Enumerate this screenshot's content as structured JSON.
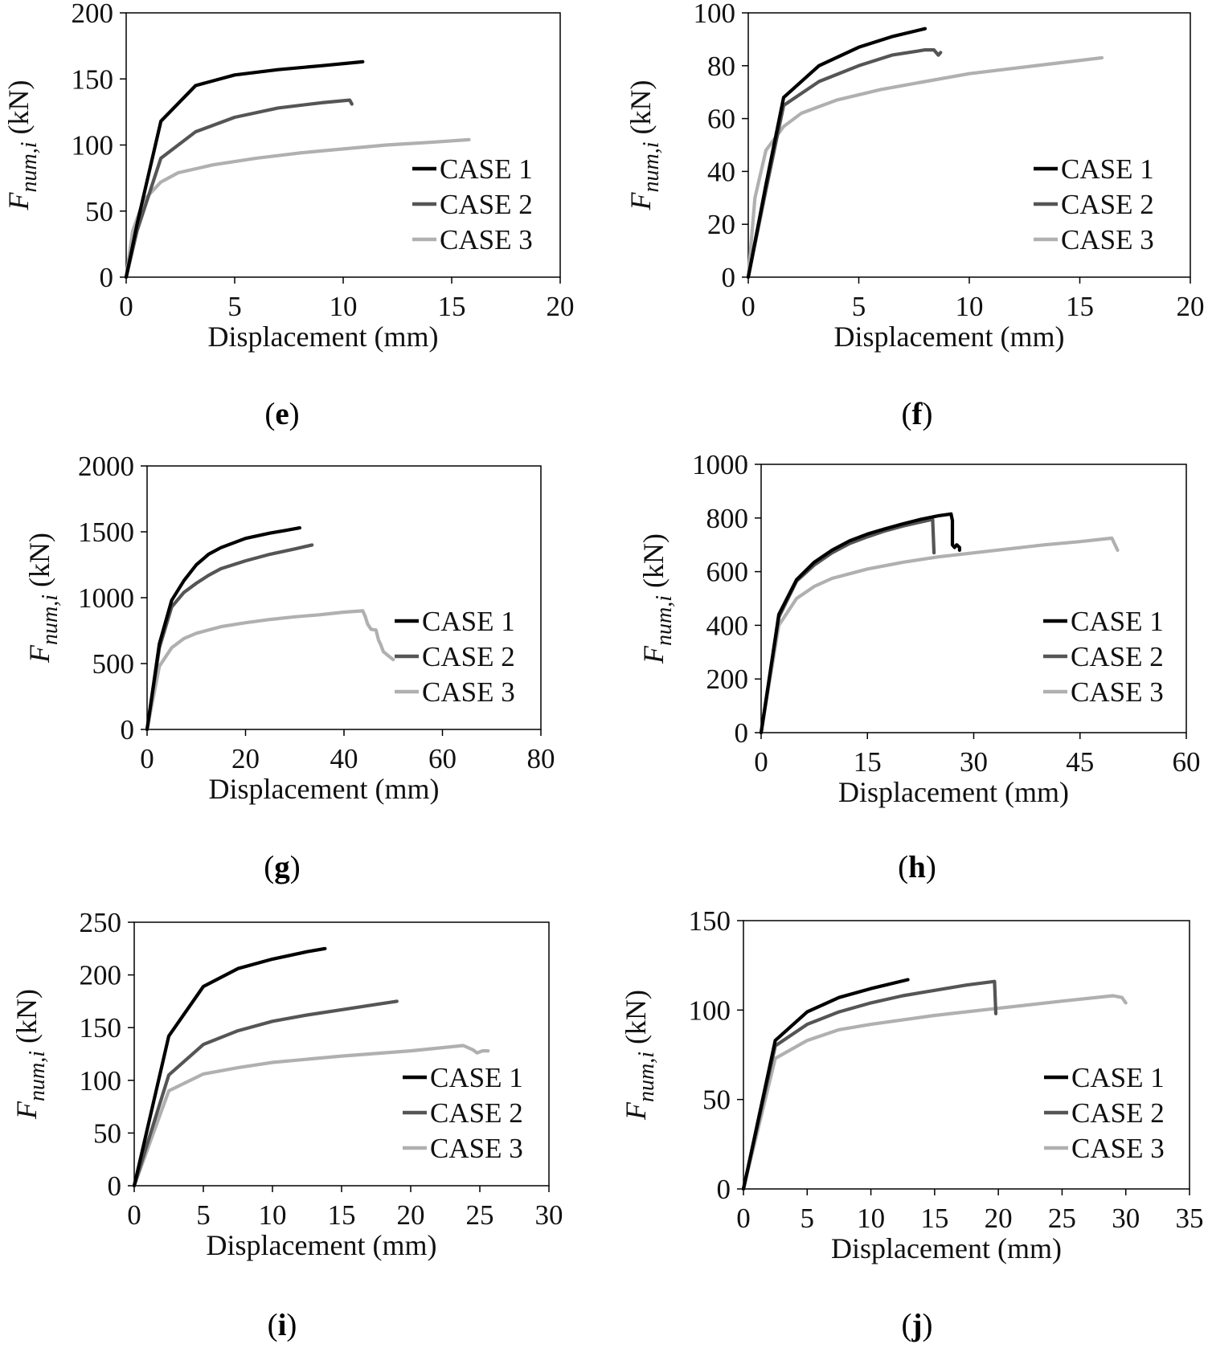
{
  "figure": {
    "colors": {
      "case1": "#000000",
      "case2": "#555555",
      "case3": "#b0b0b0",
      "frame": "#000000"
    },
    "legend_labels": [
      "CASE 1",
      "CASE 2",
      "CASE 3"
    ],
    "y_axis_label": {
      "main": "F",
      "subscript": "num,i",
      "unit": " (kN)"
    }
  },
  "chart_data": [
    {
      "id": "e",
      "panel_label": "e",
      "type": "line",
      "xlabel": "Displacement (mm)",
      "ylabel": "Fnum,i (kN)",
      "xlim": [
        0,
        20
      ],
      "ylim": [
        0,
        200
      ],
      "xticks": [
        "0",
        "5",
        "10",
        "15",
        "20"
      ],
      "yticks": [
        "0",
        "50",
        "100",
        "150",
        "200"
      ],
      "legend": [
        "CASE 1",
        "CASE 2",
        "CASE 3"
      ],
      "series": [
        {
          "name": "CASE 1",
          "x": [
            0,
            0.5,
            1.6,
            3.2,
            5,
            7,
            9,
            10.9
          ],
          "y": [
            0,
            40,
            118,
            145,
            153,
            157,
            160,
            163
          ]
        },
        {
          "name": "CASE 2",
          "x": [
            0,
            0.5,
            1.6,
            3.2,
            5,
            7,
            9,
            10.3,
            10.4
          ],
          "y": [
            0,
            35,
            90,
            110,
            121,
            128,
            132,
            134,
            131
          ]
        },
        {
          "name": "CASE 3",
          "x": [
            0,
            0.3,
            0.8,
            1.6,
            2.4,
            4,
            6,
            8,
            10,
            12,
            14,
            15.8
          ],
          "y": [
            0,
            35,
            58,
            72,
            79,
            85,
            90,
            94,
            97,
            100,
            102,
            104
          ]
        }
      ]
    },
    {
      "id": "f",
      "panel_label": "f",
      "type": "line",
      "xlabel": "Displacement (mm)",
      "ylabel": "Fnum,i (kN)",
      "xlim": [
        0,
        20
      ],
      "ylim": [
        0,
        100
      ],
      "xticks": [
        "0",
        "5",
        "10",
        "15",
        "20"
      ],
      "yticks": [
        "0",
        "20",
        "40",
        "60",
        "80",
        "100"
      ],
      "legend": [
        "CASE 1",
        "CASE 2",
        "CASE 3"
      ],
      "series": [
        {
          "name": "CASE 1",
          "x": [
            0,
            0.8,
            1.6,
            3.2,
            5,
            6.5,
            8
          ],
          "y": [
            0,
            35,
            68,
            80,
            87,
            91,
            94
          ]
        },
        {
          "name": "CASE 2",
          "x": [
            0,
            0.8,
            1.6,
            3.2,
            5,
            6.5,
            8,
            8.4,
            8.6,
            8.7
          ],
          "y": [
            0,
            33,
            65,
            74,
            80,
            84,
            86,
            86,
            84,
            85
          ]
        },
        {
          "name": "CASE 3",
          "x": [
            0,
            0.3,
            0.8,
            1.6,
            2.4,
            4,
            6,
            8,
            10,
            12,
            14,
            16
          ],
          "y": [
            0,
            30,
            48,
            57,
            62,
            67,
            71,
            74,
            77,
            79,
            81,
            83
          ]
        }
      ]
    },
    {
      "id": "g",
      "panel_label": "g",
      "type": "line",
      "xlabel": "Displacement (mm)",
      "ylabel": "Fnum,i (kN)",
      "xlim": [
        0,
        80
      ],
      "ylim": [
        0,
        2000
      ],
      "xticks": [
        "0",
        "20",
        "40",
        "60",
        "80"
      ],
      "yticks": [
        "0",
        "500",
        "1000",
        "1500",
        "2000"
      ],
      "legend": [
        "CASE 1",
        "CASE 2",
        "CASE 3"
      ],
      "series": [
        {
          "name": "CASE 1",
          "x": [
            0,
            2.5,
            5,
            7.5,
            10,
            12.5,
            15,
            20,
            25,
            28,
            31
          ],
          "y": [
            0,
            650,
            980,
            1130,
            1250,
            1330,
            1380,
            1450,
            1490,
            1510,
            1530
          ]
        },
        {
          "name": "CASE 2",
          "x": [
            0,
            2.5,
            5,
            7.5,
            10,
            12.5,
            15,
            20,
            25,
            30,
            33.5
          ],
          "y": [
            0,
            620,
            930,
            1040,
            1110,
            1170,
            1220,
            1280,
            1330,
            1370,
            1400
          ]
        },
        {
          "name": "CASE 3",
          "x": [
            0,
            2.5,
            5,
            7.5,
            10,
            15,
            20,
            25,
            30,
            35,
            40,
            43.8,
            44.3,
            44.8,
            45.5,
            46.5,
            47,
            47.5,
            48,
            49,
            50
          ],
          "y": [
            0,
            480,
            620,
            690,
            730,
            780,
            810,
            835,
            855,
            870,
            890,
            900,
            860,
            800,
            760,
            755,
            680,
            640,
            590,
            560,
            530
          ]
        }
      ]
    },
    {
      "id": "h",
      "panel_label": "h",
      "type": "line",
      "xlabel": "Displacement (mm)",
      "ylabel": "Fnum,i (kN)",
      "xlim": [
        0,
        60
      ],
      "ylim": [
        0,
        1000
      ],
      "xticks": [
        "0",
        "15",
        "30",
        "45",
        "60"
      ],
      "yticks": [
        "0",
        "200",
        "400",
        "600",
        "800",
        "1000"
      ],
      "legend": [
        "CASE 1",
        "CASE 2",
        "CASE 3"
      ],
      "series": [
        {
          "name": "CASE 1",
          "x": [
            0,
            2.5,
            5,
            7.5,
            10,
            12.5,
            15,
            17.5,
            20,
            22.5,
            25,
            26.8,
            27,
            27,
            27.3,
            27.6,
            28,
            28
          ],
          "y": [
            0,
            440,
            570,
            635,
            680,
            715,
            740,
            760,
            778,
            795,
            808,
            815,
            790,
            700,
            690,
            700,
            690,
            680
          ]
        },
        {
          "name": "CASE 2",
          "x": [
            0,
            2.5,
            5,
            7.5,
            10,
            12.5,
            15,
            17.5,
            20,
            22.5,
            24.2,
            24.4
          ],
          "y": [
            0,
            430,
            565,
            625,
            670,
            705,
            730,
            752,
            770,
            785,
            795,
            670
          ]
        },
        {
          "name": "CASE 3",
          "x": [
            0,
            2.5,
            5,
            7.5,
            10,
            15,
            20,
            25,
            30,
            35,
            40,
            45,
            49.5,
            50.3
          ],
          "y": [
            0,
            400,
            500,
            545,
            575,
            610,
            635,
            655,
            670,
            685,
            700,
            712,
            725,
            680
          ]
        }
      ]
    },
    {
      "id": "i",
      "panel_label": "i",
      "type": "line",
      "xlabel": "Displacement (mm)",
      "ylabel": "Fnum,i (kN)",
      "xlim": [
        0,
        30
      ],
      "ylim": [
        0,
        250
      ],
      "xticks": [
        "0",
        "5",
        "10",
        "15",
        "20",
        "25",
        "30"
      ],
      "yticks": [
        "0",
        "50",
        "100",
        "150",
        "200",
        "250"
      ],
      "legend": [
        "CASE 1",
        "CASE 2",
        "CASE 3"
      ],
      "series": [
        {
          "name": "CASE 1",
          "x": [
            0,
            2.5,
            5,
            7.5,
            10,
            12.5,
            13.8
          ],
          "y": [
            0,
            142,
            189,
            206,
            215,
            222,
            225
          ]
        },
        {
          "name": "CASE 2",
          "x": [
            0,
            2.5,
            5,
            7.5,
            10,
            12.5,
            15,
            17.5,
            19
          ],
          "y": [
            0,
            105,
            134,
            147,
            156,
            162,
            167,
            172,
            175
          ]
        },
        {
          "name": "CASE 3",
          "x": [
            0,
            2.5,
            5,
            7.5,
            10,
            15,
            20,
            23.8,
            24.5,
            24.8,
            25.2,
            25.6
          ],
          "y": [
            0,
            90,
            106,
            112,
            117,
            123,
            128,
            133,
            129,
            126,
            128,
            128
          ]
        }
      ]
    },
    {
      "id": "j",
      "panel_label": "j",
      "type": "line",
      "xlabel": "Displacement (mm)",
      "ylabel": "Fnum,i (kN)",
      "xlim": [
        0,
        35
      ],
      "ylim": [
        0,
        150
      ],
      "xticks": [
        "0",
        "5",
        "10",
        "15",
        "20",
        "25",
        "30",
        "35"
      ],
      "yticks": [
        "0",
        "50",
        "100",
        "150"
      ],
      "legend": [
        "CASE 1",
        "CASE 2",
        "CASE 3"
      ],
      "series": [
        {
          "name": "CASE 1",
          "x": [
            0,
            2.5,
            5,
            7.5,
            10,
            12.9
          ],
          "y": [
            0,
            83,
            99,
            107,
            112,
            117
          ]
        },
        {
          "name": "CASE 2",
          "x": [
            0,
            2.5,
            5,
            7.5,
            10,
            12.5,
            15,
            17.5,
            19.7,
            19.8
          ],
          "y": [
            0,
            80,
            92,
            99,
            104,
            108,
            111,
            114,
            116,
            98
          ]
        },
        {
          "name": "CASE 3",
          "x": [
            0,
            2.5,
            5,
            7.5,
            10,
            15,
            20,
            25,
            29,
            29.7,
            30
          ],
          "y": [
            0,
            73,
            83,
            89,
            92,
            97,
            101,
            105,
            108,
            107,
            104
          ]
        }
      ]
    }
  ]
}
